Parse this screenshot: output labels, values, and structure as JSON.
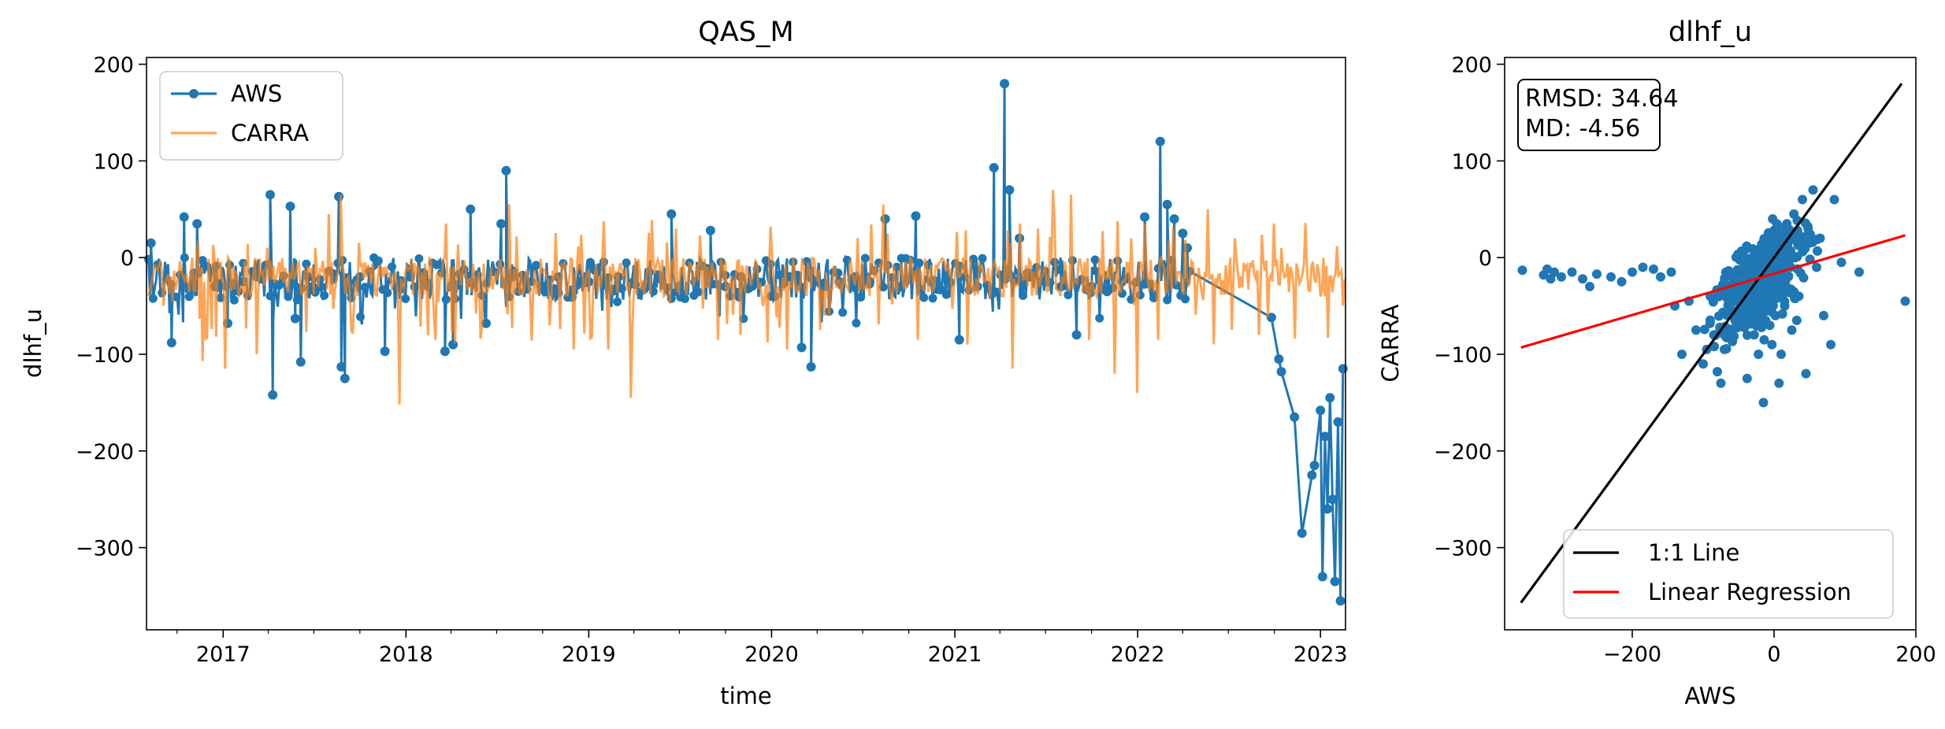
{
  "colors": {
    "aws": "#1f77b4",
    "carra": "#ff7f0e",
    "one_to_one": "#000000",
    "regression": "#ff0000"
  },
  "chart_data": [
    {
      "type": "line",
      "title": "QAS_M",
      "xlabel": "time",
      "ylabel": "dlhf_u",
      "xlim": [
        "2016-08-01",
        "2023-02-20"
      ],
      "ylim": [
        -385,
        207
      ],
      "x_ticks": [
        "2017",
        "2018",
        "2019",
        "2020",
        "2021",
        "2022",
        "2023"
      ],
      "y_ticks": [
        200,
        100,
        0,
        -100,
        -200,
        -300
      ],
      "grid": false,
      "legend": "top-left",
      "series": [
        {
          "name": "AWS",
          "style": "line-with-markers",
          "color": "#1f77b4",
          "points": [
            [
              "2016-08-10",
              15
            ],
            [
              "2016-09-20",
              -88
            ],
            [
              "2016-10-15",
              42
            ],
            [
              "2016-11-10",
              35
            ],
            [
              "2016-12-15",
              -30
            ],
            [
              "2017-01-10",
              -68
            ],
            [
              "2017-02-10",
              -25
            ],
            [
              "2017-03-10",
              -20
            ],
            [
              "2017-04-05",
              65
            ],
            [
              "2017-04-10",
              -142
            ],
            [
              "2017-05-15",
              53
            ],
            [
              "2017-05-25",
              -63
            ],
            [
              "2017-06-05",
              -108
            ],
            [
              "2017-06-20",
              -20
            ],
            [
              "2017-07-15",
              -30
            ],
            [
              "2017-08-20",
              63
            ],
            [
              "2017-08-25",
              -113
            ],
            [
              "2017-09-01",
              -125
            ],
            [
              "2017-10-01",
              -20
            ],
            [
              "2017-11-20",
              -97
            ],
            [
              "2018-01-10",
              -20
            ],
            [
              "2018-02-15",
              -30
            ],
            [
              "2018-03-20",
              -97
            ],
            [
              "2018-04-05",
              -90
            ],
            [
              "2018-04-15",
              -28
            ],
            [
              "2018-05-10",
              50
            ],
            [
              "2018-06-10",
              -68
            ],
            [
              "2018-07-10",
              35
            ],
            [
              "2018-07-20",
              90
            ],
            [
              "2018-08-01",
              -20
            ],
            [
              "2018-09-01",
              -25
            ],
            [
              "2018-10-01",
              -30
            ],
            [
              "2018-11-01",
              -20
            ],
            [
              "2018-12-01",
              -35
            ],
            [
              "2019-01-01",
              -25
            ],
            [
              "2019-02-01",
              -28
            ],
            [
              "2019-03-01",
              -20
            ],
            [
              "2019-04-01",
              -25
            ],
            [
              "2019-05-01",
              -15
            ],
            [
              "2019-06-15",
              45
            ],
            [
              "2019-07-01",
              -30
            ],
            [
              "2019-08-01",
              -25
            ],
            [
              "2019-09-01",
              28
            ],
            [
              "2019-10-01",
              -30
            ],
            [
              "2019-11-01",
              -20
            ],
            [
              "2019-12-01",
              -25
            ],
            [
              "2020-01-01",
              -40
            ],
            [
              "2020-02-01",
              -20
            ],
            [
              "2020-03-01",
              -93
            ],
            [
              "2020-03-20",
              -113
            ],
            [
              "2020-04-15",
              -30
            ],
            [
              "2020-05-15",
              -25
            ],
            [
              "2020-06-15",
              -20
            ],
            [
              "2020-07-15",
              -25
            ],
            [
              "2020-08-15",
              40
            ],
            [
              "2020-09-15",
              -30
            ],
            [
              "2020-10-15",
              43
            ],
            [
              "2020-11-15",
              -25
            ],
            [
              "2020-12-15",
              -20
            ],
            [
              "2021-01-10",
              -85
            ],
            [
              "2021-02-15",
              -30
            ],
            [
              "2021-03-20",
              93
            ],
            [
              "2021-04-10",
              180
            ],
            [
              "2021-04-20",
              70
            ],
            [
              "2021-05-10",
              20
            ],
            [
              "2021-06-01",
              -20
            ],
            [
              "2021-07-01",
              -25
            ],
            [
              "2021-08-01",
              -30
            ],
            [
              "2021-09-01",
              -80
            ],
            [
              "2021-10-01",
              -30
            ],
            [
              "2021-11-01",
              -35
            ],
            [
              "2021-12-01",
              -25
            ],
            [
              "2022-01-15",
              42
            ],
            [
              "2022-02-15",
              120
            ],
            [
              "2022-03-01",
              55
            ],
            [
              "2022-03-15",
              40
            ],
            [
              "2022-04-01",
              25
            ],
            [
              "2022-04-10",
              10
            ],
            [
              "2022-09-25",
              -62
            ],
            [
              "2022-10-10",
              -105
            ],
            [
              "2022-10-15",
              -118
            ],
            [
              "2022-11-10",
              -165
            ],
            [
              "2022-11-25",
              -285
            ],
            [
              "2022-12-15",
              -225
            ],
            [
              "2022-12-20",
              -215
            ],
            [
              "2023-01-01",
              -158
            ],
            [
              "2023-01-05",
              -330
            ],
            [
              "2023-01-10",
              -185
            ],
            [
              "2023-01-15",
              -260
            ],
            [
              "2023-01-20",
              -145
            ],
            [
              "2023-01-25",
              -250
            ],
            [
              "2023-01-30",
              -335
            ],
            [
              "2023-02-05",
              -170
            ],
            [
              "2023-02-10",
              -355
            ],
            [
              "2023-02-15",
              -115
            ]
          ]
        },
        {
          "name": "CARRA",
          "style": "line",
          "color": "#ff7f0e",
          "points": [
            [
              "2016-09-05",
              -50
            ],
            [
              "2016-11-20",
              -107
            ],
            [
              "2017-01-05",
              -115
            ],
            [
              "2017-03-10",
              -100
            ],
            [
              "2017-07-05",
              10
            ],
            [
              "2017-08-01",
              45
            ],
            [
              "2017-08-25",
              65
            ],
            [
              "2017-09-15",
              -75
            ],
            [
              "2017-12-20",
              -152
            ],
            [
              "2018-03-01",
              -85
            ],
            [
              "2018-06-01",
              -70
            ],
            [
              "2018-07-25",
              55
            ],
            [
              "2018-10-15",
              -70
            ],
            [
              "2018-12-01",
              -95
            ],
            [
              "2019-02-10",
              -95
            ],
            [
              "2019-03-25",
              -145
            ],
            [
              "2019-06-01",
              -40
            ],
            [
              "2019-06-25",
              30
            ],
            [
              "2019-09-15",
              -85
            ],
            [
              "2019-11-01",
              -80
            ],
            [
              "2020-02-01",
              -95
            ],
            [
              "2020-04-15",
              -60
            ],
            [
              "2020-06-20",
              20
            ],
            [
              "2020-08-10",
              55
            ],
            [
              "2020-10-20",
              -85
            ],
            [
              "2021-01-25",
              -90
            ],
            [
              "2021-04-25",
              -115
            ],
            [
              "2021-06-15",
              30
            ],
            [
              "2021-07-15",
              70
            ],
            [
              "2021-08-20",
              65
            ],
            [
              "2021-09-25",
              -85
            ],
            [
              "2021-11-15",
              -120
            ],
            [
              "2022-01-01",
              -140
            ],
            [
              "2022-02-10",
              -85
            ],
            [
              "2022-05-20",
              50
            ],
            [
              "2022-07-15",
              20
            ],
            [
              "2022-09-01",
              -80
            ],
            [
              "2022-10-15",
              10
            ],
            [
              "2023-01-10",
              -40
            ],
            [
              "2023-02-15",
              -50
            ]
          ]
        }
      ]
    },
    {
      "type": "scatter",
      "title": "dlhf_u",
      "xlabel": "AWS",
      "ylabel": "CARRA",
      "xlim": [
        -380,
        200
      ],
      "ylim": [
        -385,
        207
      ],
      "x_ticks": [
        -200,
        0,
        200
      ],
      "y_ticks": [
        200,
        100,
        0,
        -100,
        -200,
        -300
      ],
      "grid": false,
      "stats": {
        "rmsd": "RMSD: 34.64",
        "md": "MD: -4.56"
      },
      "legend": "bottom-right",
      "lines": [
        {
          "name": "1:1 Line",
          "color": "#000000",
          "x": [
            -357,
            180
          ],
          "y": [
            -357,
            180
          ]
        },
        {
          "name": "Linear Regression",
          "color": "#ff0000",
          "x": [
            -357,
            185
          ],
          "y": [
            -93,
            23
          ]
        }
      ],
      "points": [
        [
          -355,
          -13
        ],
        [
          -325,
          -18
        ],
        [
          -320,
          -12
        ],
        [
          -315,
          -22
        ],
        [
          -310,
          -15
        ],
        [
          -300,
          -20
        ],
        [
          -285,
          -15
        ],
        [
          -270,
          -22
        ],
        [
          -260,
          -30
        ],
        [
          -250,
          -17
        ],
        [
          -230,
          -20
        ],
        [
          -215,
          -25
        ],
        [
          -200,
          -15
        ],
        [
          -185,
          -10
        ],
        [
          -170,
          -12
        ],
        [
          -160,
          -20
        ],
        [
          -145,
          -15
        ],
        [
          -140,
          -50
        ],
        [
          -120,
          -45
        ],
        [
          -100,
          -110
        ],
        [
          -95,
          -95
        ],
        [
          -85,
          -80
        ],
        [
          -80,
          -118
        ],
        [
          -75,
          -130
        ],
        [
          -70,
          -95
        ],
        [
          -60,
          -85
        ],
        [
          -55,
          -65
        ],
        [
          -50,
          -70
        ],
        [
          -45,
          -40
        ],
        [
          -40,
          -60
        ],
        [
          -38,
          -125
        ],
        [
          -35,
          -20
        ],
        [
          -30,
          -45
        ],
        [
          -28,
          -80
        ],
        [
          -25,
          -55
        ],
        [
          -20,
          -10
        ],
        [
          -18,
          -35
        ],
        [
          -15,
          -150
        ],
        [
          -12,
          -65
        ],
        [
          -10,
          -25
        ],
        [
          -8,
          5
        ],
        [
          -5,
          -45
        ],
        [
          -3,
          -90
        ],
        [
          0,
          -15
        ],
        [
          2,
          -60
        ],
        [
          5,
          10
        ],
        [
          8,
          -35
        ],
        [
          10,
          -100
        ],
        [
          12,
          20
        ],
        [
          15,
          -50
        ],
        [
          18,
          35
        ],
        [
          20,
          -20
        ],
        [
          25,
          -75
        ],
        [
          28,
          45
        ],
        [
          30,
          0
        ],
        [
          35,
          -40
        ],
        [
          40,
          60
        ],
        [
          45,
          -120
        ],
        [
          50,
          15
        ],
        [
          55,
          70
        ],
        [
          60,
          -10
        ],
        [
          70,
          -60
        ],
        [
          80,
          -90
        ],
        [
          85,
          60
        ],
        [
          95,
          -5
        ],
        [
          120,
          -15
        ],
        [
          185,
          -45
        ],
        [
          -65,
          -30
        ],
        [
          -48,
          -15
        ],
        [
          -42,
          0
        ],
        [
          -22,
          -100
        ],
        [
          -6,
          -70
        ],
        [
          4,
          -5
        ],
        [
          22,
          25
        ],
        [
          32,
          -65
        ],
        [
          48,
          30
        ],
        [
          65,
          20
        ],
        [
          -90,
          -40
        ],
        [
          -110,
          -75
        ],
        [
          -130,
          -100
        ],
        [
          7,
          -130
        ],
        [
          -2,
          40
        ],
        [
          16,
          5
        ],
        [
          -14,
          -85
        ]
      ]
    }
  ]
}
